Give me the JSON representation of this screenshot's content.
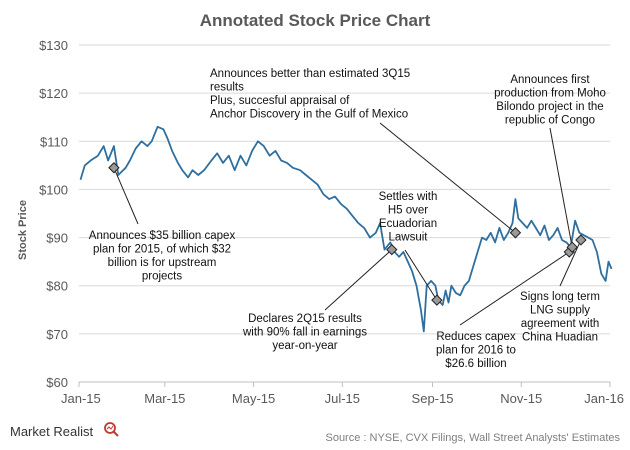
{
  "chart_data": {
    "type": "line",
    "title": "Annotated Stock Price Chart",
    "ylabel": "Stock Price",
    "xlabel": "",
    "ylim": [
      60,
      130
    ],
    "y_ticks": [
      "$60",
      "$70",
      "$80",
      "$90",
      "$100",
      "$110",
      "$120",
      "$130"
    ],
    "y_tick_values": [
      60,
      70,
      80,
      90,
      100,
      110,
      120,
      130
    ],
    "x_ticks": [
      "Jan-15",
      "Mar-15",
      "May-15",
      "Jul-15",
      "Sep-15",
      "Nov-15",
      "Jan-16"
    ],
    "x_tick_dates": [
      "2015-01-01",
      "2015-03-01",
      "2015-05-01",
      "2015-07-01",
      "2015-09-01",
      "2015-11-01",
      "2016-01-01"
    ],
    "xlim": [
      "2015-01-01",
      "2016-01-01"
    ],
    "grid": "horizontal",
    "line_color": "#2f6f9f",
    "series": [
      {
        "points": [
          [
            "2015-01-02",
            102
          ],
          [
            "2015-01-05",
            105
          ],
          [
            "2015-01-09",
            106
          ],
          [
            "2015-01-14",
            107
          ],
          [
            "2015-01-18",
            109
          ],
          [
            "2015-01-21",
            106
          ],
          [
            "2015-01-25",
            109
          ],
          [
            "2015-01-28",
            103
          ],
          [
            "2015-02-02",
            104.5
          ],
          [
            "2015-02-05",
            106
          ],
          [
            "2015-02-09",
            108.5
          ],
          [
            "2015-02-13",
            110
          ],
          [
            "2015-02-17",
            109
          ],
          [
            "2015-02-20",
            110
          ],
          [
            "2015-02-24",
            113
          ],
          [
            "2015-02-28",
            112.5
          ],
          [
            "2015-03-03",
            110.5
          ],
          [
            "2015-03-06",
            108
          ],
          [
            "2015-03-10",
            105.5
          ],
          [
            "2015-03-13",
            104
          ],
          [
            "2015-03-17",
            102.5
          ],
          [
            "2015-03-20",
            104
          ],
          [
            "2015-03-24",
            103
          ],
          [
            "2015-03-28",
            104
          ],
          [
            "2015-04-02",
            106
          ],
          [
            "2015-04-06",
            107.5
          ],
          [
            "2015-04-10",
            105.5
          ],
          [
            "2015-04-14",
            107
          ],
          [
            "2015-04-18",
            104
          ],
          [
            "2015-04-22",
            107
          ],
          [
            "2015-04-26",
            105
          ],
          [
            "2015-04-30",
            108
          ],
          [
            "2015-05-04",
            110
          ],
          [
            "2015-05-08",
            109
          ],
          [
            "2015-05-12",
            107
          ],
          [
            "2015-05-16",
            108
          ],
          [
            "2015-05-20",
            106
          ],
          [
            "2015-05-24",
            105.5
          ],
          [
            "2015-05-28",
            104.5
          ],
          [
            "2015-06-02",
            104
          ],
          [
            "2015-06-06",
            103
          ],
          [
            "2015-06-10",
            102
          ],
          [
            "2015-06-14",
            101
          ],
          [
            "2015-06-18",
            99
          ],
          [
            "2015-06-22",
            98
          ],
          [
            "2015-06-26",
            98.5
          ],
          [
            "2015-06-30",
            97
          ],
          [
            "2015-07-04",
            96
          ],
          [
            "2015-07-08",
            94.5
          ],
          [
            "2015-07-12",
            93
          ],
          [
            "2015-07-16",
            92
          ],
          [
            "2015-07-20",
            90
          ],
          [
            "2015-07-24",
            91
          ],
          [
            "2015-07-27",
            93
          ],
          [
            "2015-07-30",
            87.5
          ],
          [
            "2015-08-03",
            89
          ],
          [
            "2015-08-06",
            87
          ],
          [
            "2015-08-09",
            86
          ],
          [
            "2015-08-12",
            87
          ],
          [
            "2015-08-15",
            85
          ],
          [
            "2015-08-18",
            83
          ],
          [
            "2015-08-21",
            80
          ],
          [
            "2015-08-24",
            75
          ],
          [
            "2015-08-26",
            70.5
          ],
          [
            "2015-08-28",
            80
          ],
          [
            "2015-08-31",
            81
          ],
          [
            "2015-09-03",
            80
          ],
          [
            "2015-09-05",
            77
          ],
          [
            "2015-09-08",
            76
          ],
          [
            "2015-09-10",
            79
          ],
          [
            "2015-09-12",
            76.5
          ],
          [
            "2015-09-14",
            80
          ],
          [
            "2015-09-17",
            78.5
          ],
          [
            "2015-09-20",
            78
          ],
          [
            "2015-09-23",
            80
          ],
          [
            "2015-09-26",
            81
          ],
          [
            "2015-09-29",
            84
          ],
          [
            "2015-10-02",
            87
          ],
          [
            "2015-10-05",
            90
          ],
          [
            "2015-10-08",
            89.5
          ],
          [
            "2015-10-11",
            91
          ],
          [
            "2015-10-14",
            89
          ],
          [
            "2015-10-17",
            92
          ],
          [
            "2015-10-20",
            89.5
          ],
          [
            "2015-10-23",
            91
          ],
          [
            "2015-10-26",
            93
          ],
          [
            "2015-10-28",
            98
          ],
          [
            "2015-10-30",
            94
          ],
          [
            "2015-11-02",
            93
          ],
          [
            "2015-11-05",
            92
          ],
          [
            "2015-11-08",
            93.5
          ],
          [
            "2015-11-11",
            92
          ],
          [
            "2015-11-14",
            90.5
          ],
          [
            "2015-11-17",
            92.5
          ],
          [
            "2015-11-20",
            89.5
          ],
          [
            "2015-11-23",
            90.5
          ],
          [
            "2015-11-26",
            92
          ],
          [
            "2015-11-29",
            89.5
          ],
          [
            "2015-12-02",
            89
          ],
          [
            "2015-12-05",
            88
          ],
          [
            "2015-12-08",
            93.5
          ],
          [
            "2015-12-11",
            91
          ],
          [
            "2015-12-14",
            90.5
          ],
          [
            "2015-12-17",
            90
          ],
          [
            "2015-12-20",
            89.5
          ],
          [
            "2015-12-23",
            87
          ],
          [
            "2015-12-26",
            82.5
          ],
          [
            "2015-12-29",
            81
          ],
          [
            "2015-12-31",
            85
          ],
          [
            "2016-01-02",
            83.5
          ]
        ]
      }
    ],
    "annotations": [
      {
        "date": "2015-01-25",
        "value": 104.5,
        "lines": [
          "Announces $35 billion capex",
          "plan for 2015, of which $32",
          "billion is for upstream",
          "projects"
        ]
      },
      {
        "date": "2015-08-04",
        "value": 87.5,
        "lines": [
          "Declares 2Q15 results",
          "with 90% fall in earnings",
          "year-on-year"
        ]
      },
      {
        "date": "2015-09-04",
        "value": 77,
        "lines": [
          "Settles with",
          "H5 over",
          "Ecuadorian",
          "Lawsuit"
        ]
      },
      {
        "date": "2015-10-28",
        "value": 91,
        "lines": [
          "Announces better than estimated 3Q15",
          "results",
          "Plus, succesful appraisal of",
          "Anchor Discovery in the Gulf of Mexico"
        ]
      },
      {
        "date": "2015-12-04",
        "value": 87,
        "lines": [
          "Reduces capex",
          "plan for 2016 to",
          "$26.6 billion"
        ]
      },
      {
        "date": "2015-12-06",
        "value": 88,
        "lines": [
          "Announces first",
          "production from Moho",
          "Bilondo project in the",
          "republic of Congo"
        ]
      },
      {
        "date": "2015-12-12",
        "value": 89.5,
        "lines": [
          "Signs long term",
          "LNG supply",
          "agreement with",
          "China Huadian"
        ]
      }
    ]
  },
  "footer": {
    "source": "Source : NYSE, CVX Filings, Wall Street Analysts' Estimates",
    "brand": "Market Realist"
  }
}
